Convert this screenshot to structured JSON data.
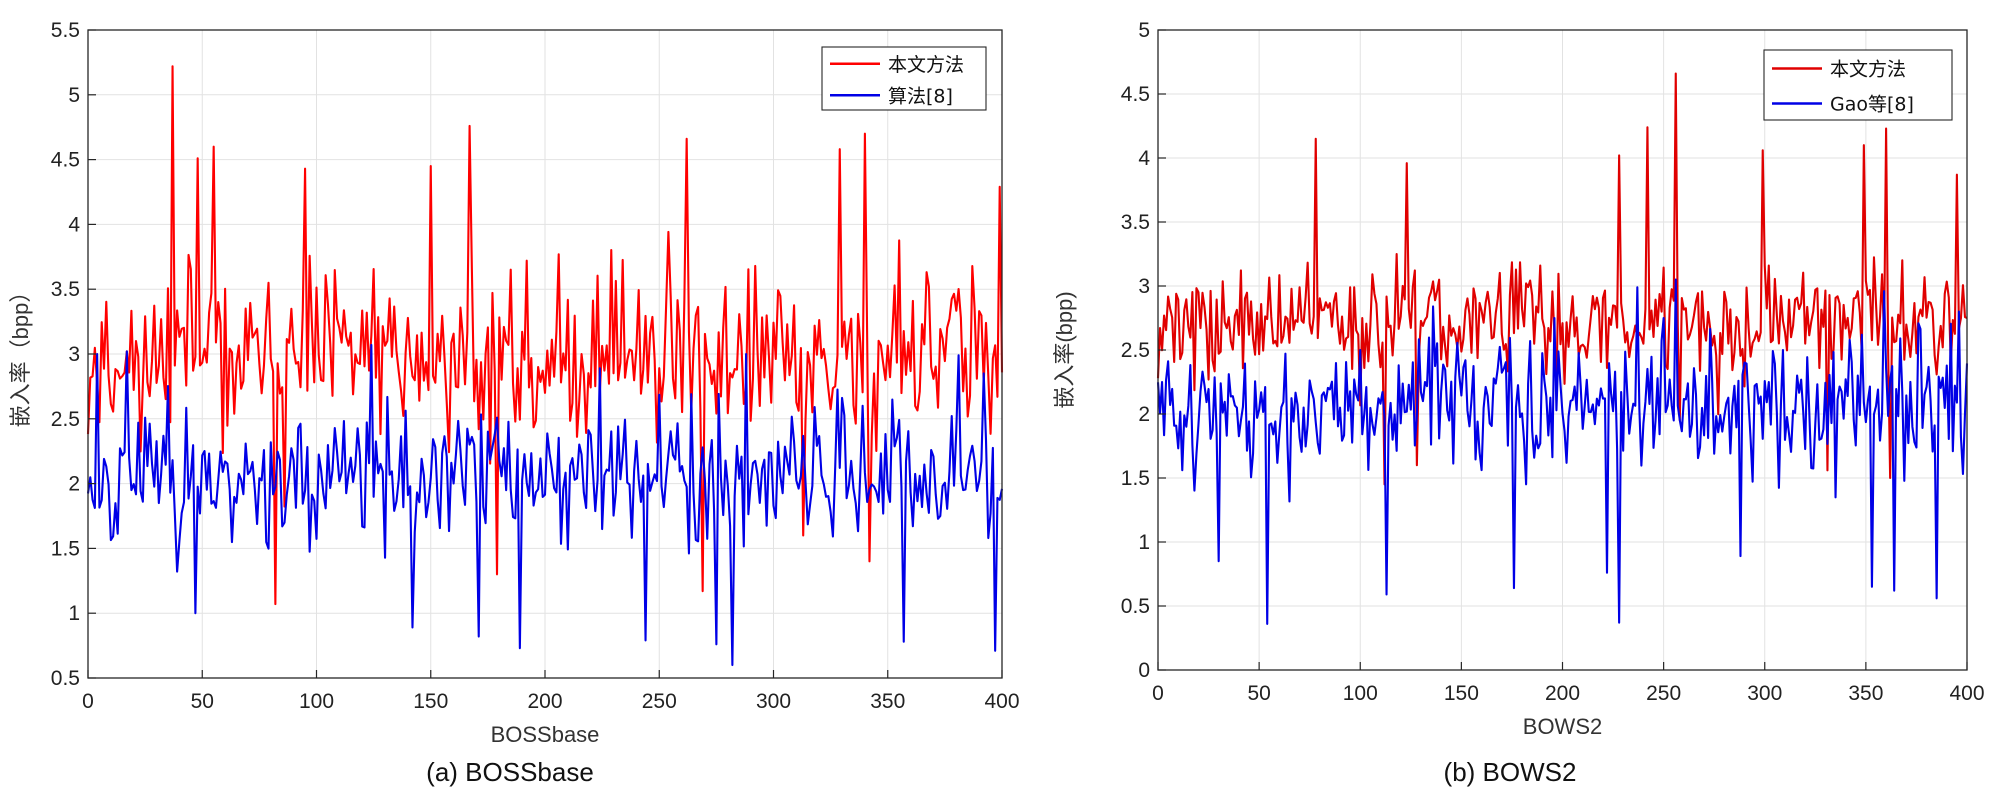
{
  "chart_data": [
    {
      "type": "line",
      "caption": "(a) BOSSbase",
      "xlabel": "BOSSbase",
      "ylabel": "嵌入率（bpp）",
      "xlim": [
        0,
        400
      ],
      "ylim": [
        0.5,
        5.5
      ],
      "xticks": [
        0,
        50,
        100,
        150,
        200,
        250,
        300,
        350,
        400
      ],
      "yticks": [
        0.5,
        1,
        1.5,
        2,
        2.5,
        3,
        3.5,
        4,
        4.5,
        5,
        5.5
      ],
      "ytick_labels": [
        "0.5",
        "1",
        "1.5",
        "2",
        "2.5",
        "3",
        "3.5",
        "4",
        "4.5",
        "5",
        "5.5"
      ],
      "grid": true,
      "legend_position": "top-right",
      "series": [
        {
          "name": "本文方法",
          "color": "#ff0000",
          "summary": "400 samples, mostly 2.0-4.0, peaks 5.2 at x=37, 4.76 at x=167, 4.7 at x=340; minima 1.07 at x=82, 1.17 at x=269",
          "peaks": [
            [
              37,
              5.22
            ],
            [
              167,
              4.76
            ],
            [
              340,
              4.7
            ],
            [
              262,
              4.66
            ],
            [
              329,
              4.58
            ],
            [
              55,
              4.6
            ],
            [
              48,
              4.51
            ],
            [
              150,
              4.45
            ],
            [
              95,
              4.43
            ],
            [
              399,
              4.29
            ]
          ],
          "dips": [
            [
              82,
              1.07
            ],
            [
              269,
              1.17
            ],
            [
              179,
              1.3
            ],
            [
              342,
              1.4
            ],
            [
              313,
              1.6
            ]
          ]
        },
        {
          "name": "算法[8]",
          "color": "#0000e6",
          "summary": "400 samples, mostly 1.3-2.8, peaks 3.07 at x=124, 3.0 at x=288; minima 0.6 at x=282, 0.71 at x=397",
          "peaks": [
            [
              124,
              3.07
            ],
            [
              288,
              3.0
            ],
            [
              4,
              3.0
            ],
            [
              17,
              3.02
            ],
            [
              381,
              2.99
            ],
            [
              224,
              2.89
            ]
          ],
          "dips": [
            [
              282,
              0.6
            ],
            [
              397,
              0.71
            ],
            [
              189,
              0.73
            ],
            [
              275,
              0.76
            ],
            [
              357,
              0.78
            ],
            [
              171,
              0.82
            ],
            [
              244,
              0.79
            ],
            [
              142,
              0.89
            ],
            [
              47,
              1.0
            ]
          ]
        }
      ]
    },
    {
      "type": "line",
      "caption": "(b) BOWS2",
      "xlabel": "BOWS2",
      "ylabel": "嵌入率(bpp)",
      "xlim": [
        0,
        400
      ],
      "ylim": [
        0,
        5
      ],
      "xticks": [
        0,
        50,
        100,
        150,
        200,
        250,
        300,
        350,
        400
      ],
      "yticks": [
        0,
        0.5,
        1,
        1.5,
        2,
        2.5,
        3,
        3.5,
        4,
        4.5,
        5
      ],
      "ytick_labels": [
        "0",
        "0.5",
        "1",
        "1.5",
        "2",
        "2.5",
        "3",
        "3.5",
        "4",
        "4.5",
        "5"
      ],
      "grid": true,
      "legend_position": "top-right",
      "series": [
        {
          "name": "本文方法",
          "color": "#e00000",
          "summary": "400 samples, mostly 2.3-3.5, peaks 4.66 at x=256, 4.24 at x=242, 4.23 at x=360; minima around 1.5",
          "peaks": [
            [
              256,
              4.66
            ],
            [
              242,
              4.24
            ],
            [
              360,
              4.23
            ],
            [
              78,
              4.15
            ],
            [
              349,
              4.1
            ],
            [
              299,
              4.06
            ],
            [
              228,
              4.02
            ],
            [
              123,
              3.96
            ],
            [
              395,
              3.87
            ]
          ],
          "dips": [
            [
              112,
              1.45
            ],
            [
              128,
              1.6
            ],
            [
              362,
              1.5
            ],
            [
              331,
              1.56
            ],
            [
              258,
              1.95
            ]
          ]
        },
        {
          "name": "Gao等[8]",
          "color": "#0000e6",
          "summary": "400 samples, mostly 1.5-2.7, peaks 3.05 at x=256, 2.99 at x=237; minima 0.36 at x=54, 0.37 at x=228",
          "peaks": [
            [
              256,
              3.05
            ],
            [
              237,
              2.99
            ],
            [
              359,
              2.96
            ],
            [
              136,
              2.84
            ],
            [
              222,
              2.95
            ],
            [
              396,
              2.8
            ]
          ],
          "dips": [
            [
              54,
              0.36
            ],
            [
              228,
              0.37
            ],
            [
              113,
              0.59
            ],
            [
              385,
              0.56
            ],
            [
              176,
              0.64
            ],
            [
              364,
              0.62
            ],
            [
              353,
              0.65
            ],
            [
              222,
              0.76
            ],
            [
              30,
              0.85
            ],
            [
              288,
              0.89
            ]
          ]
        }
      ]
    }
  ]
}
